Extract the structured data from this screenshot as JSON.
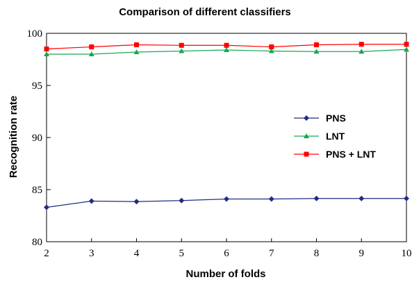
{
  "chart_data": {
    "type": "line",
    "title": "Comparison of different classifiers",
    "xlabel": "Number of folds",
    "ylabel": "Recognition rate",
    "x": [
      2,
      3,
      4,
      5,
      6,
      7,
      8,
      9,
      10
    ],
    "xlim": [
      2,
      10
    ],
    "ylim": [
      80,
      100
    ],
    "xticks": [
      "2",
      "3",
      "4",
      "5",
      "6",
      "7",
      "8",
      "9",
      "10"
    ],
    "yticks": [
      "80",
      "85",
      "90",
      "95",
      "100"
    ],
    "grid": false,
    "legend_position": "right",
    "series": [
      {
        "name": "PNS",
        "color": "#1f2d80",
        "marker": "diamond",
        "values": [
          83.3,
          83.9,
          83.85,
          83.95,
          84.1,
          84.1,
          84.15,
          84.15,
          84.15
        ]
      },
      {
        "name": "LNT",
        "color": "#17a850",
        "marker": "triangle",
        "values": [
          98.0,
          98.0,
          98.2,
          98.3,
          98.4,
          98.3,
          98.25,
          98.25,
          98.45
        ]
      },
      {
        "name": "PNS + LNT",
        "color": "#ff0000",
        "marker": "square",
        "values": [
          98.5,
          98.7,
          98.9,
          98.85,
          98.85,
          98.7,
          98.9,
          98.95,
          98.95
        ]
      }
    ]
  }
}
